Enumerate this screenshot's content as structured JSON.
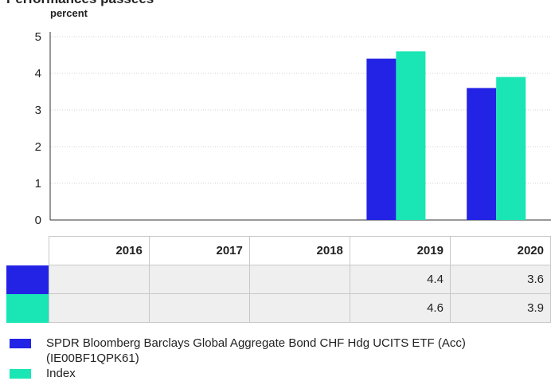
{
  "chart_data": {
    "type": "bar",
    "title": "Performances passées",
    "ylabel": "percent",
    "categories": [
      "2016",
      "2017",
      "2018",
      "2019",
      "2020"
    ],
    "ylim": [
      0,
      5
    ],
    "yticks": [
      0,
      1,
      2,
      3,
      4,
      5
    ],
    "grid": true,
    "legend_position": "bottom",
    "series": [
      {
        "name": "SPDR Bloomberg Barclays Global Aggregate Bond CHF Hdg UCITS ETF (Acc) (IE00BF1QPK61)",
        "color": "#2323e6",
        "values": [
          null,
          null,
          null,
          4.4,
          3.6
        ],
        "labels": [
          "",
          "",
          "",
          "4.4",
          "3.6"
        ]
      },
      {
        "name": "Index",
        "color": "#19e6b4",
        "values": [
          null,
          null,
          null,
          4.6,
          3.9
        ],
        "labels": [
          "",
          "",
          "",
          "4.6",
          "3.9"
        ]
      }
    ]
  }
}
